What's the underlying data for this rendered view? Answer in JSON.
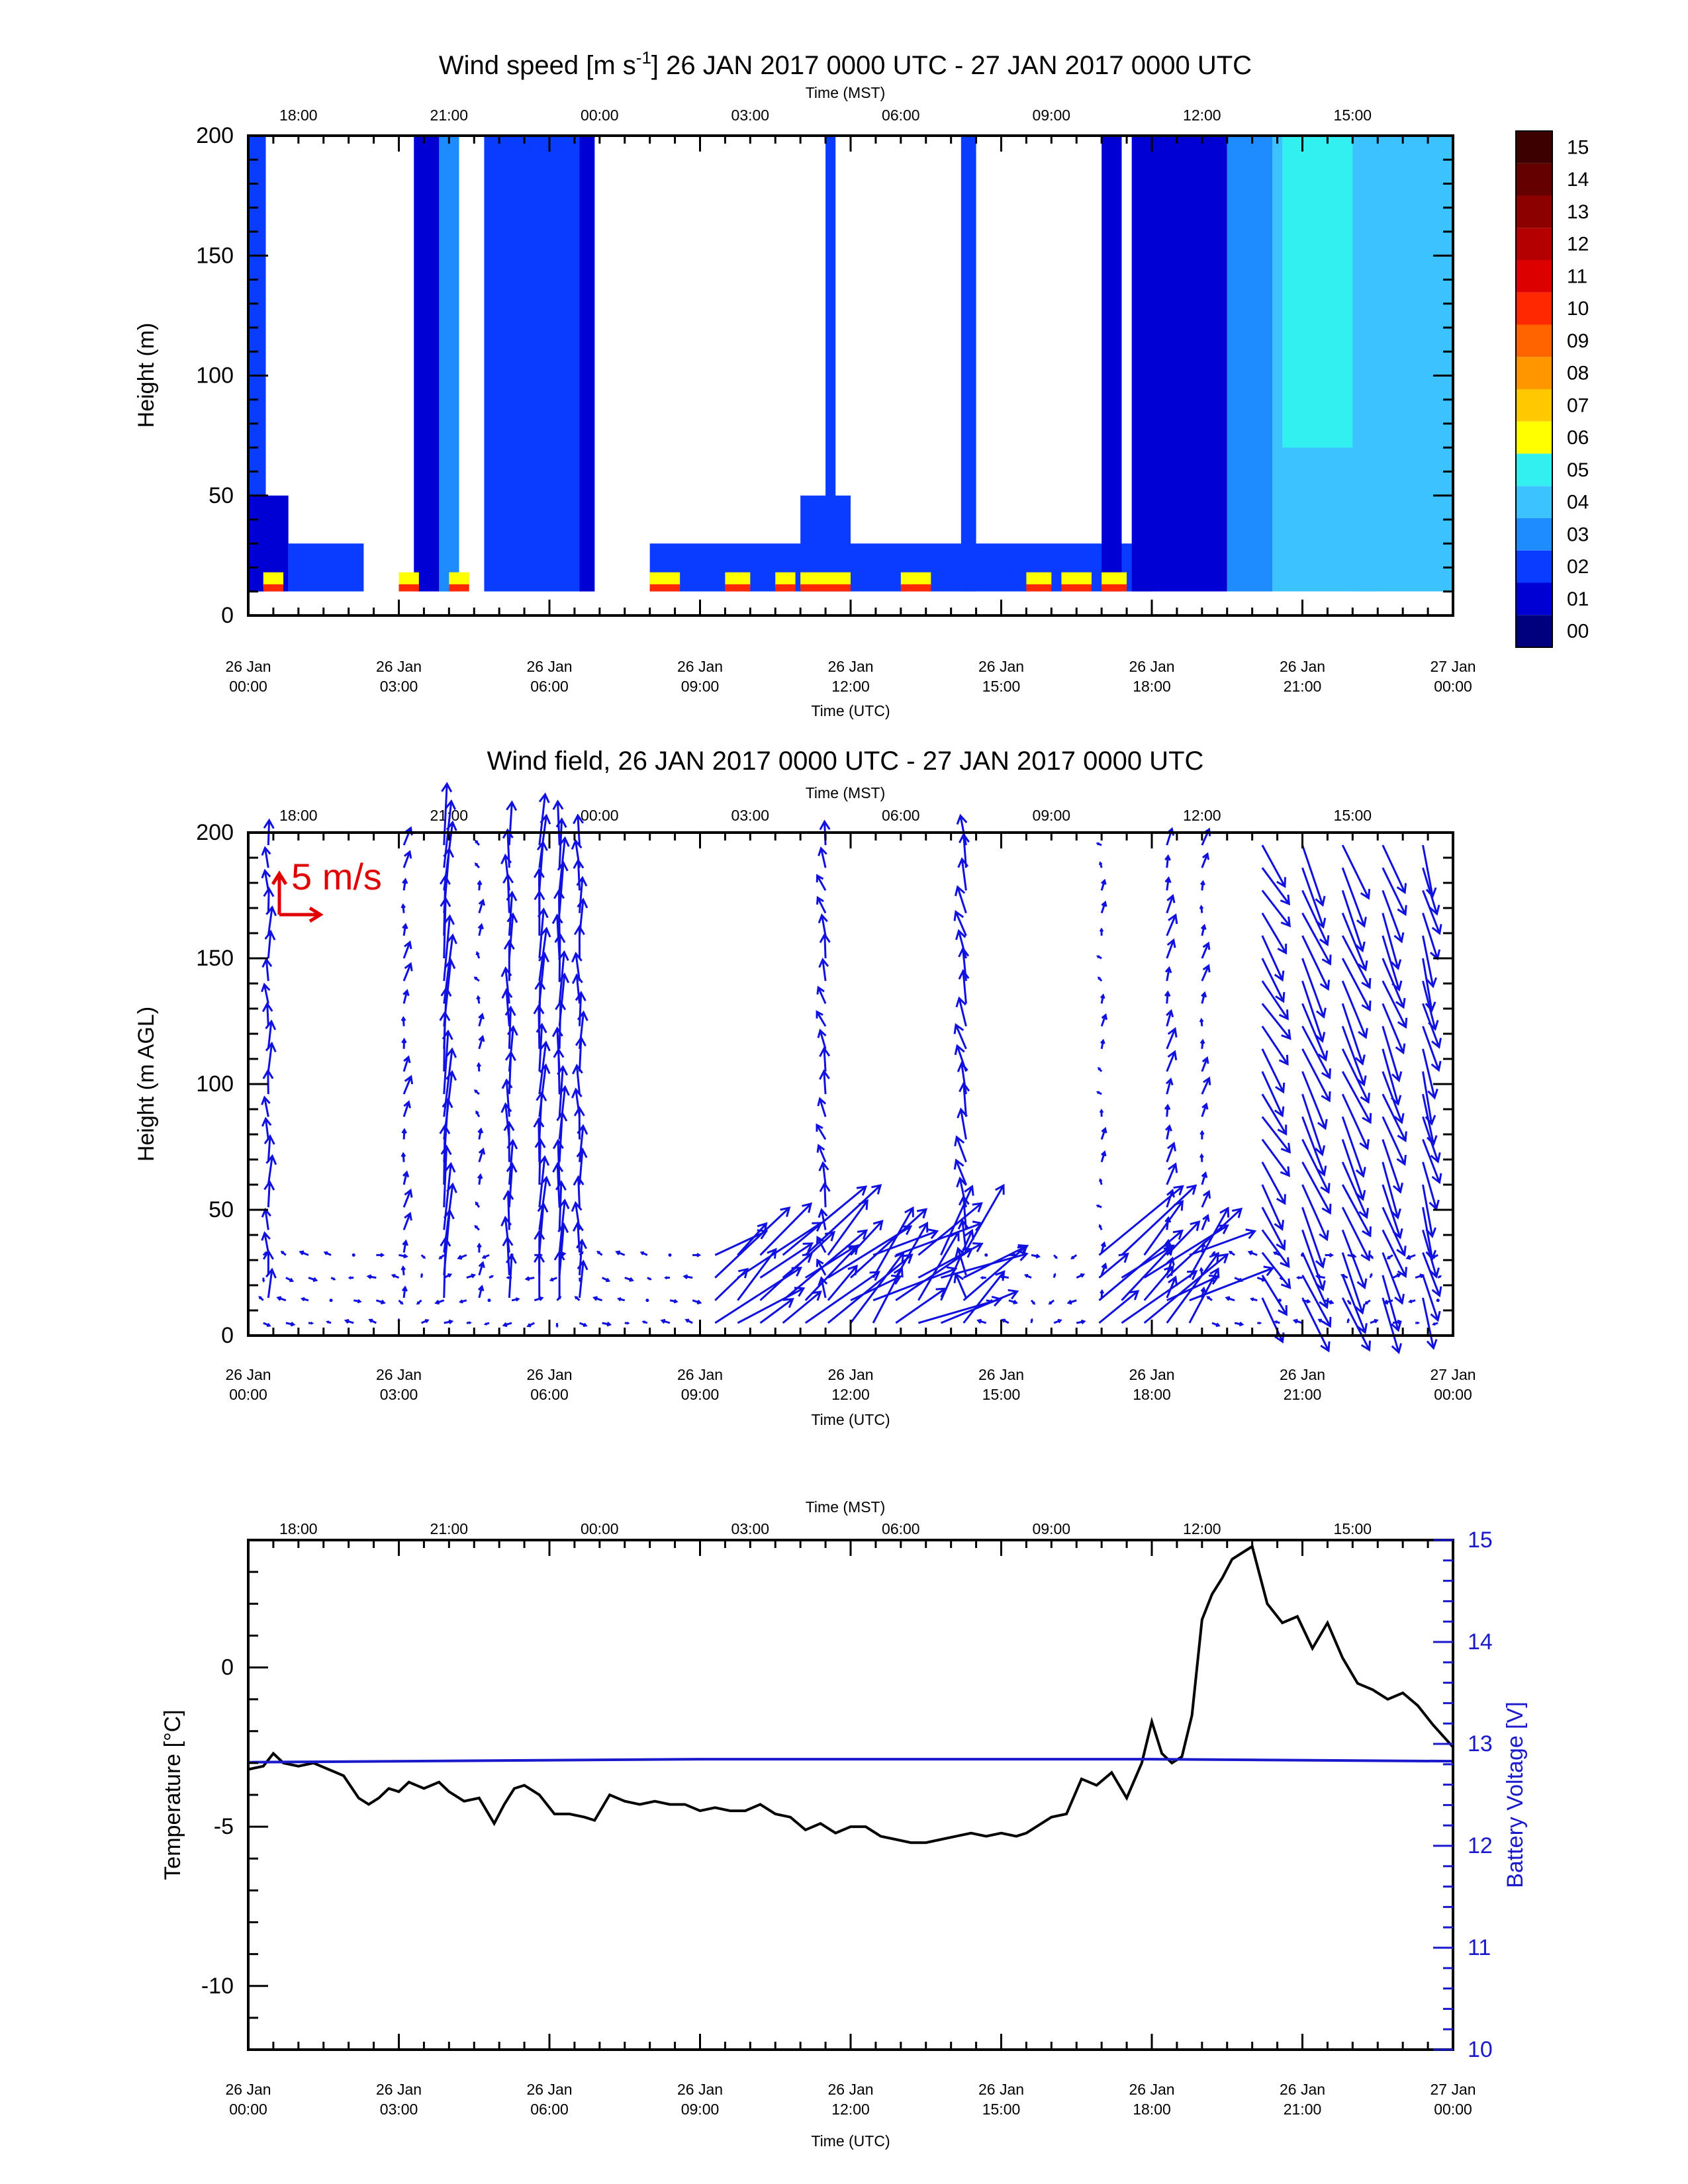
{
  "figure": {
    "panel1": {
      "title_prefix": "Wind speed [m s",
      "title_sup": "-1",
      "title_suffix": "] 26 JAN 2017 0000 UTC - 27 JAN 2017 0000 UTC",
      "ylabel": "Height (m)",
      "yticks": [
        "0",
        "50",
        "100",
        "150",
        "200"
      ],
      "colorbar": [
        "00",
        "01",
        "02",
        "03",
        "04",
        "05",
        "06",
        "07",
        "08",
        "09",
        "10",
        "11",
        "12",
        "13",
        "14",
        "15"
      ],
      "colors": [
        "#00007f",
        "#0000d4",
        "#0a3cff",
        "#1e8cff",
        "#3cc3ff",
        "#33f0f0",
        "#ffff00",
        "#ffc800",
        "#ff9600",
        "#ff6400",
        "#ff2800",
        "#dc0000",
        "#b40000",
        "#8c0000",
        "#640000",
        "#3c0000"
      ]
    },
    "panel2": {
      "title": "Wind field, 26 JAN 2017 0000 UTC - 27 JAN 2017 0000 UTC",
      "ylabel": "Height (m AGL)",
      "yticks": [
        "0",
        "50",
        "100",
        "150",
        "200"
      ],
      "scale_label": "5 m/s",
      "arrow_color": "#1010e0",
      "scale_color": "#e00000"
    },
    "panel3": {
      "ylabel_left": "Temperature [°C]",
      "ylabel_right": "Battery Voltage [V]",
      "yticks_left": [
        "-10",
        "-5",
        "0"
      ],
      "yticks_right": [
        "10",
        "11",
        "12",
        "13",
        "14",
        "15"
      ],
      "right_color": "#1a1acc"
    },
    "time_axes": {
      "top_label": "Time (MST)",
      "top_ticks": [
        "18:00",
        "21:00",
        "00:00",
        "03:00",
        "06:00",
        "09:00",
        "12:00",
        "15:00"
      ],
      "bottom_label": "Time (UTC)",
      "bottom_ticks": [
        {
          "date": "26 Jan",
          "time": "00:00"
        },
        {
          "date": "26 Jan",
          "time": "03:00"
        },
        {
          "date": "26 Jan",
          "time": "06:00"
        },
        {
          "date": "26 Jan",
          "time": "09:00"
        },
        {
          "date": "26 Jan",
          "time": "12:00"
        },
        {
          "date": "26 Jan",
          "time": "15:00"
        },
        {
          "date": "26 Jan",
          "time": "18:00"
        },
        {
          "date": "26 Jan",
          "time": "21:00"
        },
        {
          "date": "27 Jan",
          "time": "00:00"
        }
      ]
    }
  },
  "chart_data": [
    {
      "type": "heatmap",
      "title": "Wind speed [m s-1] 26 JAN 2017 0000 UTC - 27 JAN 2017 0000 UTC",
      "xlabel": "Time (UTC)",
      "ylabel": "Height (m)",
      "x_unit": "hours since 26 Jan 00:00 UTC",
      "xlim": [
        0,
        24
      ],
      "ylim": [
        0,
        200
      ],
      "colorbar_range": [
        0,
        15
      ],
      "note_regions": [
        {
          "t0": 0.0,
          "t1": 0.35,
          "z0": 0,
          "z1": 200,
          "speed": 2
        },
        {
          "t0": 0.0,
          "t1": 0.8,
          "z0": 10,
          "z1": 50,
          "speed": 0.5
        },
        {
          "t0": 0.8,
          "t1": 2.3,
          "z0": 10,
          "z1": 30,
          "speed": 1.5
        },
        {
          "t0": 3.3,
          "t1": 4.0,
          "z0": 10,
          "z1": 200,
          "speed": 1
        },
        {
          "t0": 3.8,
          "t1": 4.2,
          "z0": 10,
          "z1": 200,
          "speed": 3
        },
        {
          "t0": 4.7,
          "t1": 6.9,
          "z0": 10,
          "z1": 200,
          "speed": 2
        },
        {
          "t0": 6.6,
          "t1": 6.9,
          "z0": 10,
          "z1": 200,
          "speed": 1
        },
        {
          "t0": 8.0,
          "t1": 18.0,
          "z0": 10,
          "z1": 30,
          "speed": 1.5
        },
        {
          "t0": 11.0,
          "t1": 12.0,
          "z0": 10,
          "z1": 50,
          "speed": 2
        },
        {
          "t0": 11.5,
          "t1": 11.7,
          "z0": 10,
          "z1": 200,
          "speed": 2
        },
        {
          "t0": 14.2,
          "t1": 14.5,
          "z0": 10,
          "z1": 200,
          "speed": 2
        },
        {
          "t0": 17.0,
          "t1": 17.4,
          "z0": 10,
          "z1": 200,
          "speed": 0.5
        },
        {
          "t0": 17.6,
          "t1": 19.5,
          "z0": 10,
          "z1": 200,
          "speed": 1
        },
        {
          "t0": 19.5,
          "t1": 20.4,
          "z0": 10,
          "z1": 200,
          "speed": 2.5
        },
        {
          "t0": 20.4,
          "t1": 22.5,
          "z0": 10,
          "z1": 200,
          "speed": 3.5
        },
        {
          "t0": 20.6,
          "t1": 22.0,
          "z0": 70,
          "z1": 200,
          "speed": 5
        },
        {
          "t0": 22.0,
          "t1": 24.0,
          "z0": 10,
          "z1": 200,
          "speed": 4
        }
      ]
    },
    {
      "type": "vector",
      "title": "Wind field, 26 JAN 2017 0000 UTC - 27 JAN 2017 0000 UTC",
      "xlabel": "Time (UTC)",
      "ylabel": "Height (m AGL)",
      "xlim": [
        0,
        24
      ],
      "ylim": [
        0,
        200
      ],
      "reference_vector": "5 m/s",
      "columns": [
        {
          "t": 0.4,
          "u": 0.0,
          "v": 1.5
        },
        {
          "t": 3.1,
          "u": 0.2,
          "v": 0.8
        },
        {
          "t": 3.9,
          "u": 0.3,
          "v": 4.0
        },
        {
          "t": 4.6,
          "u": 0.0,
          "v": 0.5
        },
        {
          "t": 5.2,
          "u": 0.0,
          "v": 2.5
        },
        {
          "t": 5.8,
          "u": 0.2,
          "v": 3.0
        },
        {
          "t": 6.2,
          "u": 0.1,
          "v": 3.0
        },
        {
          "t": 6.6,
          "u": 0.0,
          "v": 2.0
        },
        {
          "t": 11.5,
          "u": -0.3,
          "v": 1.2
        },
        {
          "t": 14.3,
          "u": -0.4,
          "v": 1.8
        },
        {
          "t": 17.0,
          "u": 0.0,
          "v": 0.4
        },
        {
          "t": 18.3,
          "u": 0.3,
          "v": 1.0
        },
        {
          "t": 19.0,
          "u": 0.2,
          "v": 0.7
        },
        {
          "t": 20.2,
          "u": 1.5,
          "v": -2.5
        },
        {
          "t": 21.0,
          "u": 1.5,
          "v": -3.5
        },
        {
          "t": 21.8,
          "u": 1.5,
          "v": -3.5
        },
        {
          "t": 22.6,
          "u": 1.2,
          "v": -3.2
        },
        {
          "t": 23.4,
          "u": 0.8,
          "v": -3.0
        }
      ]
    },
    {
      "type": "line",
      "xlabel": "Time (UTC)",
      "x_unit": "hours since 26 Jan 00:00 UTC",
      "xlim": [
        0,
        24
      ],
      "series": [
        {
          "name": "Temperature [°C]",
          "axis": "left",
          "ylim": [
            -12,
            4
          ],
          "x": [
            0,
            0.3,
            0.5,
            0.7,
            1.0,
            1.3,
            1.6,
            1.9,
            2.2,
            2.4,
            2.6,
            2.8,
            3.0,
            3.2,
            3.5,
            3.8,
            4.0,
            4.3,
            4.6,
            4.9,
            5.1,
            5.3,
            5.5,
            5.8,
            6.1,
            6.4,
            6.7,
            6.9,
            7.2,
            7.5,
            7.8,
            8.1,
            8.4,
            8.7,
            9.0,
            9.3,
            9.6,
            9.9,
            10.2,
            10.5,
            10.8,
            11.1,
            11.4,
            11.7,
            12.0,
            12.3,
            12.6,
            12.9,
            13.2,
            13.5,
            13.8,
            14.1,
            14.4,
            14.7,
            15.0,
            15.3,
            15.5,
            15.8,
            16.0,
            16.3,
            16.6,
            16.9,
            17.2,
            17.5,
            17.8,
            18.0,
            18.2,
            18.4,
            18.6,
            18.8,
            19.0,
            19.2,
            19.4,
            19.6,
            19.8,
            20.0,
            20.3,
            20.6,
            20.9,
            21.2,
            21.5,
            21.8,
            22.1,
            22.4,
            22.7,
            23.0,
            23.3,
            23.6,
            24.0
          ],
          "y": [
            -3.2,
            -3.1,
            -2.7,
            -3.0,
            -3.1,
            -3.0,
            -3.2,
            -3.4,
            -4.1,
            -4.3,
            -4.1,
            -3.8,
            -3.9,
            -3.6,
            -3.8,
            -3.6,
            -3.9,
            -4.2,
            -4.1,
            -4.9,
            -4.3,
            -3.8,
            -3.7,
            -4.0,
            -4.6,
            -4.6,
            -4.7,
            -4.8,
            -4.0,
            -4.2,
            -4.3,
            -4.2,
            -4.3,
            -4.3,
            -4.5,
            -4.4,
            -4.5,
            -4.5,
            -4.3,
            -4.6,
            -4.7,
            -5.1,
            -4.9,
            -5.2,
            -5.0,
            -5.0,
            -5.3,
            -5.4,
            -5.5,
            -5.5,
            -5.4,
            -5.3,
            -5.2,
            -5.3,
            -5.2,
            -5.3,
            -5.2,
            -4.9,
            -4.7,
            -4.6,
            -3.5,
            -3.7,
            -3.3,
            -4.1,
            -3.0,
            -1.7,
            -2.7,
            -3.0,
            -2.8,
            -1.5,
            1.5,
            2.3,
            2.8,
            3.4,
            3.6,
            3.8,
            2.0,
            1.4,
            1.6,
            0.6,
            1.4,
            0.3,
            -0.5,
            -0.7,
            -1.0,
            -0.8,
            -1.2,
            -1.8,
            -2.5
          ]
        },
        {
          "name": "Battery Voltage [V]",
          "axis": "right",
          "ylim": [
            10,
            15
          ],
          "x": [
            0,
            9,
            18,
            24
          ],
          "y": [
            12.82,
            12.85,
            12.85,
            12.83
          ]
        }
      ]
    }
  ]
}
